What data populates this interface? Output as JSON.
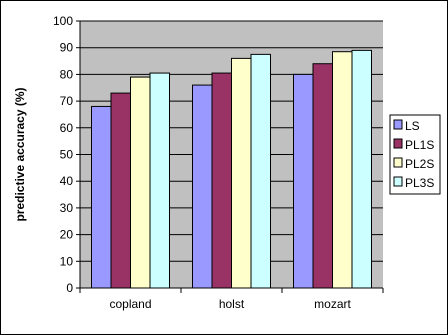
{
  "chart_data": {
    "type": "bar",
    "title": "",
    "xlabel": "",
    "ylabel": "predictive accuracy (%)",
    "ylim": [
      0,
      100
    ],
    "yticks": [
      0,
      10,
      20,
      30,
      40,
      50,
      60,
      70,
      80,
      90,
      100
    ],
    "grid": "horizontal",
    "legend_position": "right",
    "plot_background": "#C0C0C0",
    "categories": [
      "copland",
      "holst",
      "mozart"
    ],
    "series": [
      {
        "name": "LS",
        "color": "#9999FF",
        "values": [
          68,
          76,
          80
        ]
      },
      {
        "name": "PL1S",
        "color": "#993366",
        "values": [
          73,
          80.5,
          84
        ]
      },
      {
        "name": "PL2S",
        "color": "#FFFFCC",
        "values": [
          79,
          86,
          88.5
        ]
      },
      {
        "name": "PL3S",
        "color": "#CCFFFF",
        "values": [
          80.5,
          87.5,
          89
        ]
      }
    ]
  }
}
